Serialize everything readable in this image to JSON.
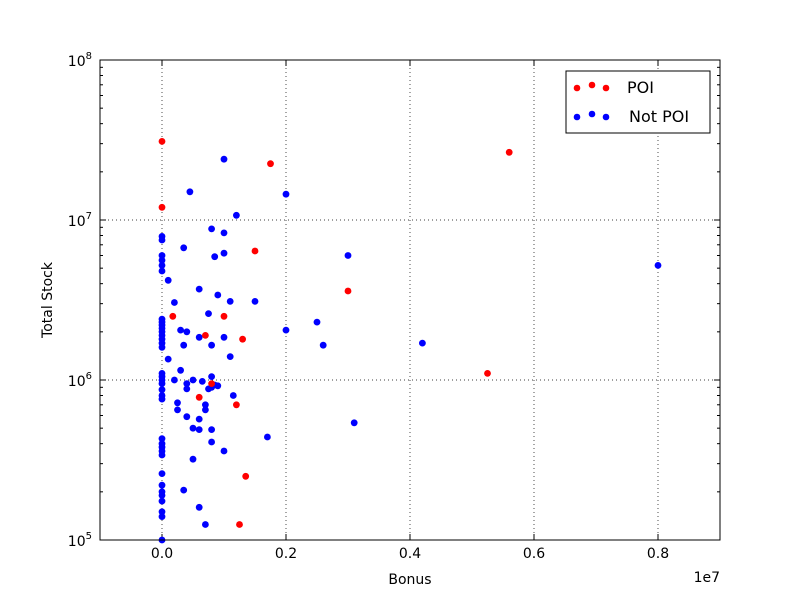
{
  "chart_data": {
    "type": "scatter",
    "title": "",
    "xlabel": "Bonus",
    "ylabel": "Total Stock",
    "x_offset_label": "1e7",
    "xlim": [
      -1000000,
      9000000
    ],
    "ylim": [
      100000,
      100000000
    ],
    "y_scale": "log",
    "grid": true,
    "legend_position": "top-right",
    "x_ticks": [
      {
        "value": 0,
        "label": "0.0"
      },
      {
        "value": 2000000,
        "label": "0.2"
      },
      {
        "value": 4000000,
        "label": "0.4"
      },
      {
        "value": 6000000,
        "label": "0.6"
      },
      {
        "value": 8000000,
        "label": "0.8"
      }
    ],
    "y_ticks": [
      {
        "value": 100000,
        "base": "10",
        "exp": "5"
      },
      {
        "value": 1000000,
        "base": "10",
        "exp": "6"
      },
      {
        "value": 10000000,
        "base": "10",
        "exp": "7"
      },
      {
        "value": 100000000,
        "base": "10",
        "exp": "8"
      }
    ],
    "series": [
      {
        "name": "POI",
        "color": "#ff0000",
        "points": [
          [
            0,
            31000000
          ],
          [
            0,
            12000000
          ],
          [
            1750000,
            22500000
          ],
          [
            5600000,
            26500000
          ],
          [
            1500000,
            6400000
          ],
          [
            3000000,
            3600000
          ],
          [
            175000,
            2500000
          ],
          [
            1000000,
            2500000
          ],
          [
            700000,
            1900000
          ],
          [
            1300000,
            1800000
          ],
          [
            5250000,
            1100000
          ],
          [
            800000,
            950000
          ],
          [
            600000,
            780000
          ],
          [
            1200000,
            700000
          ],
          [
            1350000,
            250000
          ],
          [
            1250000,
            125000
          ]
        ]
      },
      {
        "name": "Not POI",
        "color": "#0000ff",
        "points": [
          [
            1000000,
            24000000
          ],
          [
            450000,
            15000000
          ],
          [
            2000000,
            14500000
          ],
          [
            1200000,
            10700000
          ],
          [
            800000,
            8800000
          ],
          [
            1000000,
            8300000
          ],
          [
            0,
            7900000
          ],
          [
            0,
            7500000
          ],
          [
            350000,
            6700000
          ],
          [
            1000000,
            6200000
          ],
          [
            850000,
            5900000
          ],
          [
            3000000,
            6000000
          ],
          [
            0,
            6000000
          ],
          [
            0,
            5600000
          ],
          [
            0,
            5200000
          ],
          [
            0,
            4800000
          ],
          [
            8000000,
            5200000
          ],
          [
            100000,
            4200000
          ],
          [
            600000,
            3700000
          ],
          [
            900000,
            3400000
          ],
          [
            1100000,
            3100000
          ],
          [
            1500000,
            3100000
          ],
          [
            200000,
            3050000
          ],
          [
            750000,
            2600000
          ],
          [
            2500000,
            2300000
          ],
          [
            0,
            2400000
          ],
          [
            0,
            2300000
          ],
          [
            0,
            2200000
          ],
          [
            0,
            2100000
          ],
          [
            300000,
            2050000
          ],
          [
            400000,
            2000000
          ],
          [
            2000000,
            2050000
          ],
          [
            0,
            2000000
          ],
          [
            0,
            1900000
          ],
          [
            600000,
            1850000
          ],
          [
            1000000,
            1850000
          ],
          [
            0,
            1800000
          ],
          [
            0,
            1700000
          ],
          [
            350000,
            1650000
          ],
          [
            800000,
            1650000
          ],
          [
            2600000,
            1650000
          ],
          [
            4200000,
            1700000
          ],
          [
            0,
            1600000
          ],
          [
            1100000,
            1400000
          ],
          [
            100000,
            1350000
          ],
          [
            300000,
            1150000
          ],
          [
            0,
            1100000
          ],
          [
            0,
            1050000
          ],
          [
            800000,
            1050000
          ],
          [
            0,
            1000000
          ],
          [
            200000,
            1000000
          ],
          [
            500000,
            1000000
          ],
          [
            650000,
            980000
          ],
          [
            400000,
            950000
          ],
          [
            0,
            950000
          ],
          [
            850000,
            930000
          ],
          [
            900000,
            920000
          ],
          [
            800000,
            900000
          ],
          [
            400000,
            880000
          ],
          [
            750000,
            880000
          ],
          [
            0,
            870000
          ],
          [
            0,
            800000
          ],
          [
            1150000,
            800000
          ],
          [
            0,
            760000
          ],
          [
            250000,
            720000
          ],
          [
            700000,
            700000
          ],
          [
            250000,
            650000
          ],
          [
            700000,
            650000
          ],
          [
            400000,
            590000
          ],
          [
            600000,
            570000
          ],
          [
            3100000,
            540000
          ],
          [
            500000,
            500000
          ],
          [
            600000,
            490000
          ],
          [
            800000,
            490000
          ],
          [
            1700000,
            440000
          ],
          [
            0,
            430000
          ],
          [
            800000,
            410000
          ],
          [
            0,
            400000
          ],
          [
            0,
            380000
          ],
          [
            0,
            360000
          ],
          [
            1000000,
            360000
          ],
          [
            0,
            340000
          ],
          [
            500000,
            320000
          ],
          [
            0,
            260000
          ],
          [
            0,
            220000
          ],
          [
            0,
            200000
          ],
          [
            350000,
            205000
          ],
          [
            0,
            190000
          ],
          [
            0,
            175000
          ],
          [
            600000,
            160000
          ],
          [
            0,
            150000
          ],
          [
            0,
            140000
          ],
          [
            700000,
            125000
          ],
          [
            0,
            100000
          ]
        ]
      }
    ]
  }
}
